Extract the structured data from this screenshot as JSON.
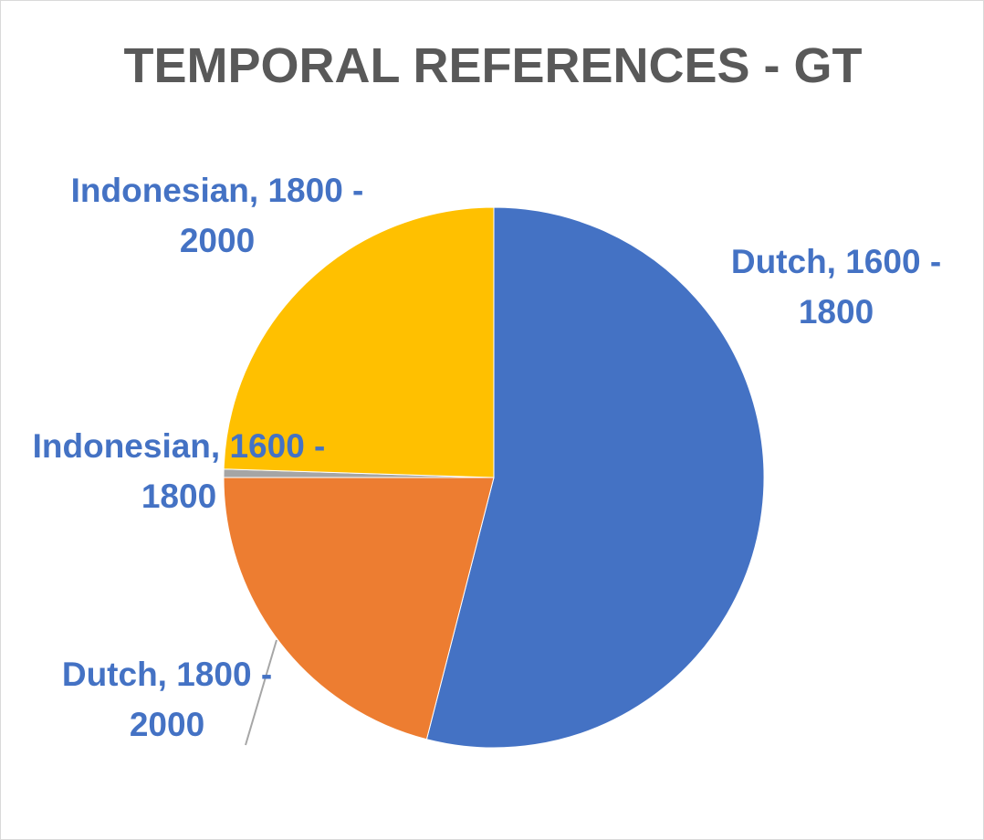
{
  "chart_data": {
    "type": "pie",
    "title": "TEMPORAL REFERENCES - GT",
    "categories": [
      "Dutch, 1600 - 1800",
      "Dutch, 1800 - 2000",
      "Indonesian, 1600 - 1800",
      "Indonesian, 1800 - 2000"
    ],
    "values": [
      54,
      21,
      0.5,
      24.5
    ],
    "colors": [
      "#4472c4",
      "#ed7d31",
      "#a5a5a5",
      "#ffc000"
    ],
    "label_color": "#4472c4"
  }
}
